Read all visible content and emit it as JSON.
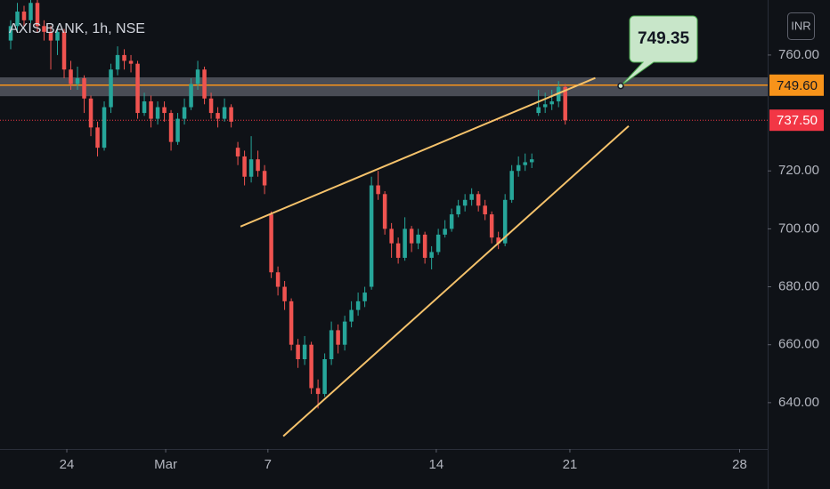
{
  "chart_data": {
    "type": "candlestick",
    "title": "AXIS BANK, 1h, NSE",
    "currency": "INR",
    "up_color": "#26a69a",
    "down_color": "#ef5350",
    "grid": false,
    "ohlc": [
      [
        765,
        772,
        762,
        770
      ],
      [
        770,
        778,
        768,
        775
      ],
      [
        775,
        777,
        770,
        772
      ],
      [
        772,
        779,
        771,
        778
      ],
      [
        778,
        779,
        768,
        770
      ],
      [
        770,
        772,
        765,
        768
      ],
      [
        768,
        770,
        755,
        765
      ],
      [
        765,
        770,
        760,
        768
      ],
      [
        768,
        769,
        752,
        755
      ],
      [
        755,
        758,
        748,
        750
      ],
      [
        750,
        756,
        748,
        752
      ],
      [
        752,
        753,
        740,
        745
      ],
      [
        745,
        746,
        732,
        735
      ],
      [
        735,
        737,
        725,
        728
      ],
      [
        728,
        744,
        727,
        742
      ],
      [
        742,
        757,
        740,
        755
      ],
      [
        755,
        763,
        753,
        760
      ],
      [
        760,
        762,
        755,
        758
      ],
      [
        758,
        760,
        754,
        757
      ],
      [
        757,
        758,
        738,
        740
      ],
      [
        740,
        747,
        739,
        744
      ],
      [
        744,
        746,
        735,
        738
      ],
      [
        738,
        744,
        736,
        742
      ],
      [
        742,
        744,
        737,
        740
      ],
      [
        740,
        741,
        727,
        730
      ],
      [
        730,
        740,
        729,
        738
      ],
      [
        738,
        745,
        736,
        742
      ],
      [
        742,
        752,
        741,
        750
      ],
      [
        750,
        758,
        748,
        755
      ],
      [
        755,
        756,
        743,
        745
      ],
      [
        745,
        747,
        738,
        740
      ],
      [
        740,
        742,
        735,
        738
      ],
      [
        738,
        745,
        737,
        742
      ],
      [
        742,
        743,
        735,
        737
      ],
      [
        728,
        730,
        722,
        725
      ],
      [
        725,
        727,
        715,
        718
      ],
      [
        718,
        732,
        716,
        724
      ],
      [
        724,
        727,
        718,
        720
      ],
      [
        720,
        722,
        712,
        715
      ],
      [
        705,
        706,
        683,
        685
      ],
      [
        685,
        687,
        677,
        680
      ],
      [
        680,
        682,
        672,
        675
      ],
      [
        675,
        676,
        658,
        660
      ],
      [
        660,
        662,
        652,
        655
      ],
      [
        655,
        663,
        653,
        660
      ],
      [
        660,
        661,
        643,
        645
      ],
      [
        645,
        648,
        638,
        643
      ],
      [
        643,
        657,
        642,
        655
      ],
      [
        655,
        668,
        653,
        665
      ],
      [
        665,
        667,
        657,
        660
      ],
      [
        660,
        670,
        658,
        668
      ],
      [
        668,
        675,
        666,
        672
      ],
      [
        672,
        678,
        670,
        675
      ],
      [
        675,
        680,
        673,
        678
      ],
      [
        680,
        718,
        679,
        715
      ],
      [
        715,
        720,
        710,
        712
      ],
      [
        712,
        713,
        698,
        700
      ],
      [
        700,
        702,
        690,
        695
      ],
      [
        695,
        697,
        688,
        690
      ],
      [
        690,
        704,
        689,
        700
      ],
      [
        700,
        701,
        692,
        695
      ],
      [
        695,
        700,
        693,
        698
      ],
      [
        698,
        699,
        688,
        690
      ],
      [
        690,
        694,
        686,
        692
      ],
      [
        692,
        700,
        691,
        698
      ],
      [
        698,
        703,
        697,
        700
      ],
      [
        700,
        707,
        699,
        705
      ],
      [
        705,
        710,
        704,
        708
      ],
      [
        708,
        712,
        706,
        710
      ],
      [
        710,
        714,
        708,
        712
      ],
      [
        712,
        713,
        706,
        708
      ],
      [
        708,
        710,
        703,
        705
      ],
      [
        705,
        706,
        695,
        697
      ],
      [
        697,
        699,
        693,
        695
      ],
      [
        695,
        712,
        694,
        710
      ],
      [
        710,
        722,
        709,
        720
      ],
      [
        720,
        725,
        718,
        722
      ],
      [
        722,
        726,
        720,
        723
      ],
      [
        723,
        726,
        721,
        724
      ],
      [
        740,
        748,
        739,
        742
      ],
      [
        742,
        747,
        740,
        743
      ],
      [
        743,
        748,
        741,
        744
      ],
      [
        744,
        751,
        742,
        749
      ],
      [
        749,
        750,
        736,
        737.5
      ]
    ],
    "xlim": [
      -1.6,
      113.3
    ],
    "xticks": [
      {
        "value": 8.4,
        "label": "24"
      },
      {
        "value": 23.2,
        "label": "Mar"
      },
      {
        "value": 38.5,
        "label": "7"
      },
      {
        "value": 63.7,
        "label": "14"
      },
      {
        "value": 83.7,
        "label": "21"
      },
      {
        "value": 109.1,
        "label": "28"
      }
    ],
    "ylim": [
      624,
      779
    ],
    "yticks": [
      {
        "value": 640,
        "label": "640.00"
      },
      {
        "value": 660,
        "label": "660.00"
      },
      {
        "value": 680,
        "label": "680.00"
      },
      {
        "value": 700,
        "label": "700.00"
      },
      {
        "value": 720,
        "label": "720.00"
      },
      {
        "value": 760,
        "label": "760.00"
      }
    ],
    "zone": {
      "top": 752.3,
      "bottom": 745.8
    },
    "levels": [
      {
        "value": 749.6,
        "label": "749.60",
        "color": "#f7931a",
        "style": "solid"
      },
      {
        "value": 737.5,
        "label": "737.50",
        "color": "#f23645",
        "style": "dotted"
      }
    ],
    "trendlines": [
      {
        "x": [
          34.4,
          87.5
        ],
        "y": [
          700.8,
          752.1
        ],
        "color": "#f5c26b"
      },
      {
        "x": [
          40.8,
          92.5
        ],
        "y": [
          628.4,
          735.5
        ],
        "color": "#f5c26b"
      }
    ],
    "callout": {
      "value": 749.35,
      "label": "749.35",
      "x": 91.3
    }
  }
}
